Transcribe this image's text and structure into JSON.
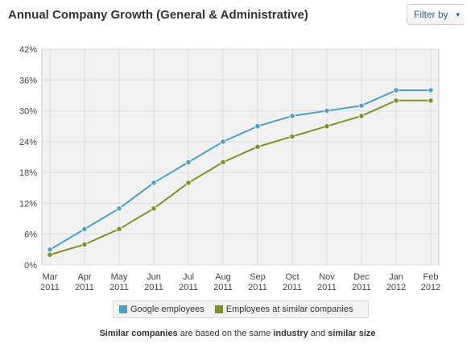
{
  "header": {
    "title": "Annual Company Growth (General & Administrative)",
    "filter_label": "Filter by"
  },
  "footnote": {
    "b1": "Similar companies",
    "t1": " are based on the same ",
    "b2": "industry",
    "t2": " and ",
    "b3": "similar size"
  },
  "colors": {
    "google": "#4a9fd0",
    "similar": "#7e9127",
    "grid": "#dcdcdc",
    "plot_bg": "#f1f1f1"
  },
  "chart_data": {
    "type": "line",
    "title": "Annual Company Growth (General & Administrative)",
    "categories": [
      "Mar|2011",
      "Apr|2011",
      "May|2011",
      "Jun|2011",
      "Jul|2011",
      "Aug|2011",
      "Sep|2011",
      "Oct|2011",
      "Nov|2011",
      "Dec|2011",
      "Jan|2012",
      "Feb|2012"
    ],
    "yticks": [
      "0%",
      "6%",
      "12%",
      "18%",
      "24%",
      "30%",
      "36%",
      "42%"
    ],
    "ylim": [
      0,
      42
    ],
    "grid": true,
    "legend_position": "bottom",
    "series": [
      {
        "name": "Google employees",
        "color": "#4a9fd0",
        "values": [
          3,
          7,
          11,
          16,
          20,
          24,
          27,
          29,
          30,
          31,
          34,
          34
        ]
      },
      {
        "name": "Employees at similar companies",
        "color": "#7e9127",
        "values": [
          2,
          4,
          7,
          11,
          16,
          20,
          23,
          25,
          27,
          29,
          32,
          32
        ]
      }
    ]
  }
}
